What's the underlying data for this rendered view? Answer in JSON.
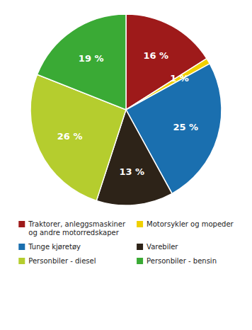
{
  "chart_data": {
    "type": "pie",
    "categories": [
      "Traktorer, anleggsmaskiner\nog andre motorredskaper",
      "Motorsykler og mopeder",
      "Tunge kjøretøy",
      "Varebiler",
      "Personbiler - diesel",
      "Personbiler - bensin"
    ],
    "values": [
      16,
      1,
      25,
      13,
      26,
      19
    ],
    "value_labels": [
      "16 %",
      "1 %",
      "25 %",
      "13 %",
      "26 %",
      "19 %"
    ],
    "colors": [
      "#9e1a1a",
      "#f0d000",
      "#1a6faf",
      "#2d2318",
      "#b5cd2e",
      "#3aaa35"
    ],
    "data_labels": true,
    "legend": "bottom"
  }
}
